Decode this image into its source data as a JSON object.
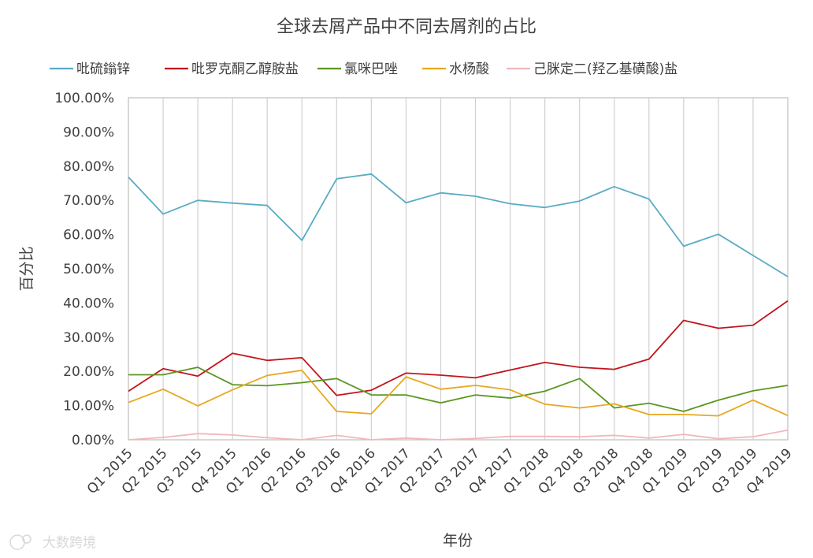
{
  "chart_data": {
    "type": "line",
    "title": "全球去屑产品中不同去屑剂的占比",
    "xlabel": "年份",
    "ylabel": "百分比",
    "ylim": [
      0,
      100
    ],
    "y_ticks": [
      "0.00%",
      "10.00%",
      "20.00%",
      "30.00%",
      "40.00%",
      "50.00%",
      "60.00%",
      "70.00%",
      "80.00%",
      "90.00%",
      "100.00%"
    ],
    "grid": "vertical",
    "legend_position": "top",
    "categories": [
      "Q1 2015",
      "Q2 2015",
      "Q3 2015",
      "Q4 2015",
      "Q1 2016",
      "Q2 2016",
      "Q3 2016",
      "Q4 2016",
      "Q1 2017",
      "Q2 2017",
      "Q3 2017",
      "Q4 2017",
      "Q1 2018",
      "Q2 2018",
      "Q3 2018",
      "Q4 2018",
      "Q1 2019",
      "Q2 2019",
      "Q3 2019",
      "Q4 2019"
    ],
    "series": [
      {
        "name": "吡硫鎓锌",
        "color": "#5aabc4",
        "values": [
          76.8,
          66.0,
          70.0,
          69.2,
          68.5,
          58.3,
          76.3,
          77.7,
          69.3,
          72.2,
          71.2,
          69.0,
          67.9,
          69.8,
          74.0,
          70.4,
          56.6,
          60.1,
          53.9,
          47.7
        ]
      },
      {
        "name": "吡罗克酮乙醇胺盐",
        "color": "#c0161d",
        "values": [
          14.2,
          20.8,
          18.6,
          25.3,
          23.2,
          24.0,
          13.0,
          14.5,
          19.5,
          18.9,
          18.1,
          20.4,
          22.6,
          21.2,
          20.6,
          23.6,
          34.9,
          32.6,
          33.5,
          40.6
        ]
      },
      {
        "name": "氯咪巴唑",
        "color": "#5b9620",
        "values": [
          19.0,
          19.0,
          21.2,
          16.1,
          15.8,
          16.7,
          17.9,
          13.1,
          13.1,
          10.8,
          13.1,
          12.2,
          14.2,
          17.9,
          9.3,
          10.7,
          8.3,
          11.6,
          14.3,
          15.9
        ]
      },
      {
        "name": "水杨酸",
        "color": "#e6a820",
        "values": [
          10.9,
          14.8,
          9.9,
          14.6,
          18.8,
          20.3,
          8.3,
          7.6,
          18.4,
          14.8,
          15.9,
          14.6,
          10.4,
          9.3,
          10.5,
          7.4,
          7.4,
          7.0,
          11.6,
          7.1
        ]
      },
      {
        "name": "己脒定二(羟乙基磺酸)盐",
        "color": "#f0b8bc",
        "values": [
          0.0,
          0.7,
          1.8,
          1.4,
          0.6,
          0.0,
          1.3,
          0.0,
          0.5,
          0.0,
          0.4,
          1.0,
          1.0,
          0.9,
          1.3,
          0.5,
          1.6,
          0.3,
          0.9,
          2.8
        ]
      }
    ]
  },
  "watermark": {
    "text": "大数跨境"
  }
}
